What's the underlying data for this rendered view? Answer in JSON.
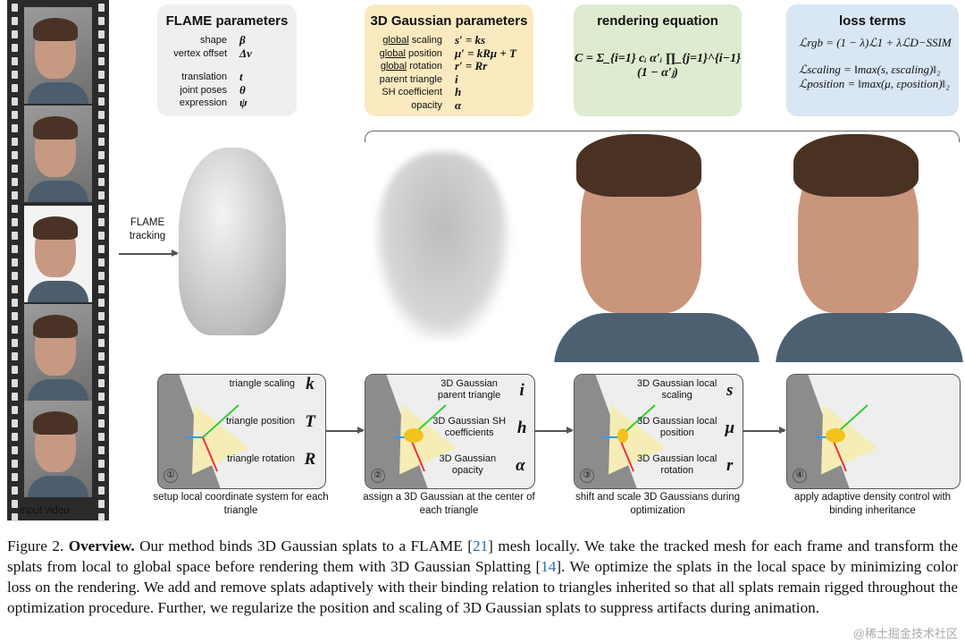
{
  "film": {
    "label": "input video"
  },
  "flame_box": {
    "title": "FLAME parameters",
    "rows": [
      {
        "label": "shape",
        "sym": "β"
      },
      {
        "label": "vertex offset",
        "sym": "Δv"
      },
      {
        "label": "",
        "sym": ""
      },
      {
        "label": "translation",
        "sym": "t"
      },
      {
        "label": "joint poses",
        "sym": "θ"
      },
      {
        "label": "expression",
        "sym": "ψ"
      }
    ]
  },
  "gauss_box": {
    "title": "3D Gaussian parameters",
    "rows": [
      {
        "u": "global",
        "label": " scaling",
        "sym": "s′ = ks"
      },
      {
        "u": "global",
        "label": " position",
        "sym": "μ′ = kRμ + T"
      },
      {
        "u": "global",
        "label": " rotation",
        "sym": "r′ = Rr"
      },
      {
        "u": "",
        "label": "parent triangle",
        "sym": "i"
      },
      {
        "u": "",
        "label": "SH coefficient",
        "sym": "h"
      },
      {
        "u": "",
        "label": "opacity",
        "sym": "α"
      }
    ]
  },
  "render_box": {
    "title": "rendering equation",
    "equation": "C = Σ_{i=1} cᵢ α′ᵢ ∏_{j=1}^{i−1} (1 − α′ⱼ)"
  },
  "loss_box": {
    "title": "loss terms",
    "eq1": "ℒrgb = (1 − λ)ℒ1 + λℒD−SSIM",
    "eq2": "ℒscaling = ‖max(s, εscaling)‖₂",
    "eq3": "ℒposition = ‖max(μ, εposition)‖₂"
  },
  "tracking": {
    "label": "FLAME tracking"
  },
  "panels": [
    {
      "num": "①",
      "items": [
        {
          "label": "triangle scaling",
          "sym": "k"
        },
        {
          "label": "triangle position",
          "sym": "T"
        },
        {
          "label": "triangle rotation",
          "sym": "R"
        }
      ],
      "caption": "setup local coordinate system for each triangle"
    },
    {
      "num": "②",
      "items": [
        {
          "label": "3D Gaussian parent triangle",
          "sym": "i"
        },
        {
          "label": "3D Gaussian SH coefficients",
          "sym": "h"
        },
        {
          "label": "3D Gaussian opacity",
          "sym": "α"
        }
      ],
      "caption": "assign a 3D Gaussian at the center of each triangle"
    },
    {
      "num": "③",
      "items": [
        {
          "label": "3D Gaussian local scaling",
          "sym": "s"
        },
        {
          "label": "3D Gaussian local position",
          "sym": "μ"
        },
        {
          "label": "3D Gaussian local rotation",
          "sym": "r"
        }
      ],
      "caption": "shift and scale 3D Gaussians during optimization"
    },
    {
      "num": "④",
      "items": [],
      "caption": "apply adaptive density control with binding inheritance"
    }
  ],
  "figure_caption": {
    "prefix": "Figure 2. ",
    "bold": "Overview.",
    "t1": " Our method binds 3D Gaussian splats to a FLAME [",
    "r1": "21",
    "t2": "] mesh locally. We take the tracked mesh for each frame and transform the splats from local to global space before rendering them with 3D Gaussian Splatting [",
    "r2": "14",
    "t3": "]. We optimize the splats in the local space by minimizing color loss on the rendering. We add and remove splats adaptively with their binding relation to triangles inherited so that all splats remain rigged throughout the optimization procedure. Further, we regularize the position and scaling of 3D Gaussian splats to suppress artifacts during animation."
  },
  "watermark": "@稀土掘金技术社区",
  "colors": {
    "flame_box": "#efefef",
    "gauss_box": "#fbeac0",
    "render_box": "#ddebd0",
    "loss_box": "#d9e6f3",
    "citation": "#2a6db5"
  }
}
